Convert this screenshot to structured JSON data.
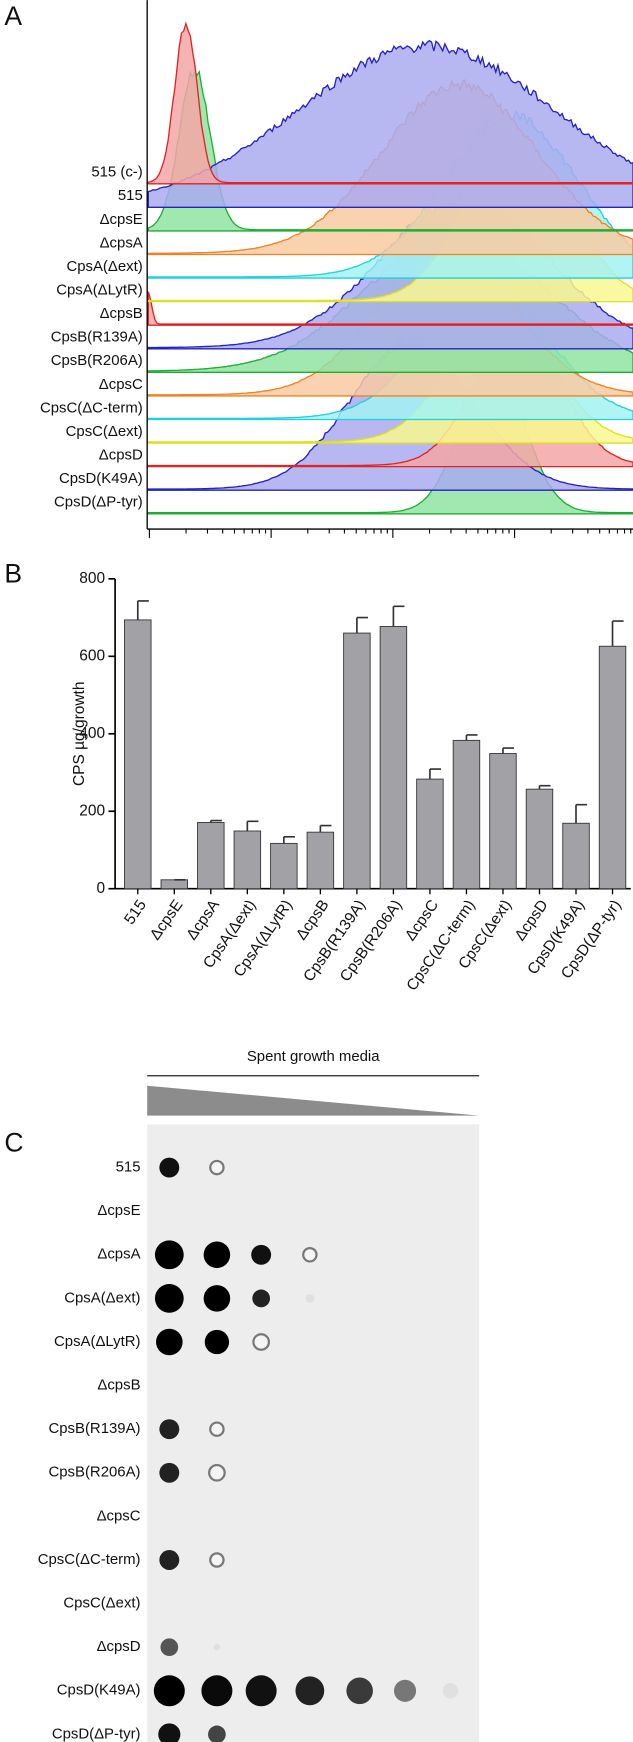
{
  "panel_a": {
    "label": "A",
    "rows": [
      "515 (c-)",
      "515",
      "ΔcpsE",
      "ΔcpsA",
      "CpsA(Δext)",
      "CpsA(ΔLytR)",
      "ΔcpsB",
      "CpsB(R139A)",
      "CpsB(R206A)",
      "ΔcpsC",
      "CpsC(ΔC-term)",
      "CpsC(Δext)",
      "ΔcpsD",
      "CpsD(K49A)",
      "CpsD(ΔP-tyr)"
    ]
  },
  "panel_b": {
    "label": "B"
  },
  "chart_data": {
    "type": "bar",
    "ylabel": "CPS µg/growth",
    "categories": [
      "515",
      "ΔcpsE",
      "ΔcpsA",
      "CpsA(Δext)",
      "CpsA(ΔLytR)",
      "ΔcpsB",
      "CpsB(R139A)",
      "CpsB(R206A)",
      "ΔcpsC",
      "CpsC(ΔC-term)",
      "CpsC(Δext)",
      "ΔcpsD",
      "CpsD(K49A)",
      "CpsD(ΔP-tyr)"
    ],
    "values": [
      694,
      23,
      171,
      149,
      117,
      146,
      660,
      677,
      283,
      383,
      349,
      257,
      169,
      626
    ],
    "errors": [
      49,
      0,
      5,
      25,
      17,
      17,
      40,
      52,
      26,
      14,
      14,
      9,
      48,
      65
    ],
    "color": "#a2a2a6",
    "ylim": [
      0,
      800
    ],
    "yticks": [
      0,
      200,
      400,
      600,
      800
    ]
  },
  "panel_c": {
    "label": "C",
    "title": "Spent growth media",
    "rows": [
      "515",
      "ΔcpsE",
      "ΔcpsA",
      "CpsA(Δext)",
      "CpsA(ΔLytR)",
      "ΔcpsB",
      "CpsB(R139A)",
      "CpsB(R206A)",
      "ΔcpsC",
      "CpsC(ΔC-term)",
      "CpsC(Δext)",
      "ΔcpsD",
      "CpsD(K49A)",
      "CpsD(ΔP-tyr)"
    ]
  }
}
